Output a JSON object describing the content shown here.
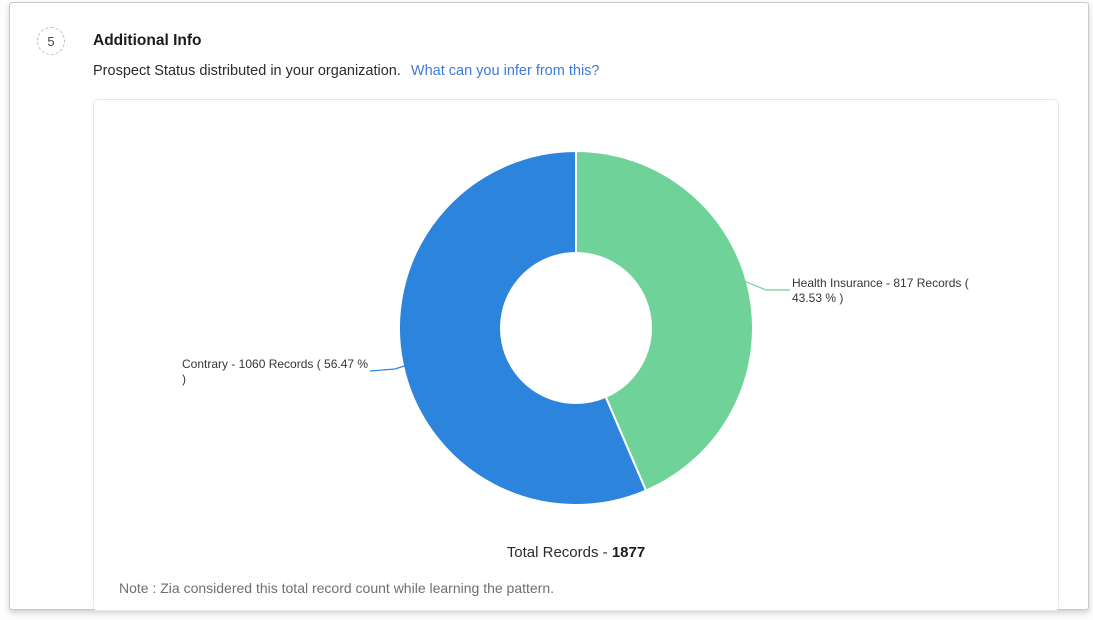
{
  "step": {
    "number": "5",
    "title": "Additional Info",
    "subtitle": "Prospect Status distributed in your organization.",
    "link_text": "What can you infer from this?"
  },
  "colors": {
    "link_blue": "#3e7adb",
    "segment_green": "#6fd298",
    "segment_blue": "#2d84dc",
    "card_border": "#e9e9e9",
    "panel_border": "#c9c9c9",
    "note_gray": "#6f6f6f"
  },
  "chart_data": {
    "type": "pie",
    "variant": "donut",
    "start_angle_deg": 0,
    "clockwise": true,
    "segments": [
      {
        "label": "Health Insurance",
        "records": 817,
        "percent": 43.53,
        "color": "#6fd298",
        "display": "Health Insurance - 817 Records ( 43.53 % )"
      },
      {
        "label": "Contrary",
        "records": 1060,
        "percent": 56.47,
        "color": "#2d84dc",
        "display": "Contrary - 1060 Records ( 56.47 % )"
      }
    ],
    "total_records": 1877,
    "total_label": "Total Records - ",
    "total_value": "1877"
  },
  "note": "Note : Zia considered this total record count while learning the pattern."
}
